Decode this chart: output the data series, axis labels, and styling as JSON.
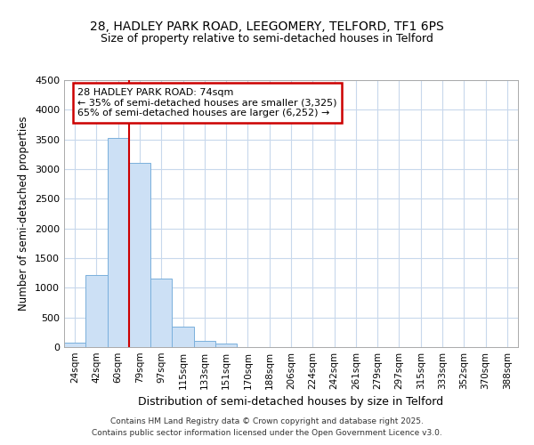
{
  "title_line1": "28, HADLEY PARK ROAD, LEEGOMERY, TELFORD, TF1 6PS",
  "title_line2": "Size of property relative to semi-detached houses in Telford",
  "xlabel": "Distribution of semi-detached houses by size in Telford",
  "ylabel": "Number of semi-detached properties",
  "annotation_line1": "28 HADLEY PARK ROAD: 74sqm",
  "annotation_line2": "← 35% of semi-detached houses are smaller (3,325)",
  "annotation_line3": "65% of semi-detached houses are larger (6,252) →",
  "bar_color": "#cce0f5",
  "bar_edge_color": "#7ab0dc",
  "vline_color": "#cc0000",
  "annotation_box_edge": "#cc0000",
  "background_color": "#ffffff",
  "grid_color": "#c8d8ec",
  "categories": [
    "24sqm",
    "42sqm",
    "60sqm",
    "79sqm",
    "97sqm",
    "115sqm",
    "133sqm",
    "151sqm",
    "170sqm",
    "188sqm",
    "206sqm",
    "224sqm",
    "242sqm",
    "261sqm",
    "279sqm",
    "297sqm",
    "315sqm",
    "333sqm",
    "352sqm",
    "370sqm",
    "388sqm"
  ],
  "values": [
    75,
    1220,
    3520,
    3100,
    1150,
    340,
    100,
    55,
    5,
    3,
    2,
    2,
    1,
    1,
    1,
    0,
    0,
    0,
    0,
    0,
    0
  ],
  "ylim": [
    0,
    4500
  ],
  "yticks": [
    0,
    500,
    1000,
    1500,
    2000,
    2500,
    3000,
    3500,
    4000,
    4500
  ],
  "vline_x": 2.5,
  "footnote_line1": "Contains HM Land Registry data © Crown copyright and database right 2025.",
  "footnote_line2": "Contains public sector information licensed under the Open Government Licence v3.0."
}
